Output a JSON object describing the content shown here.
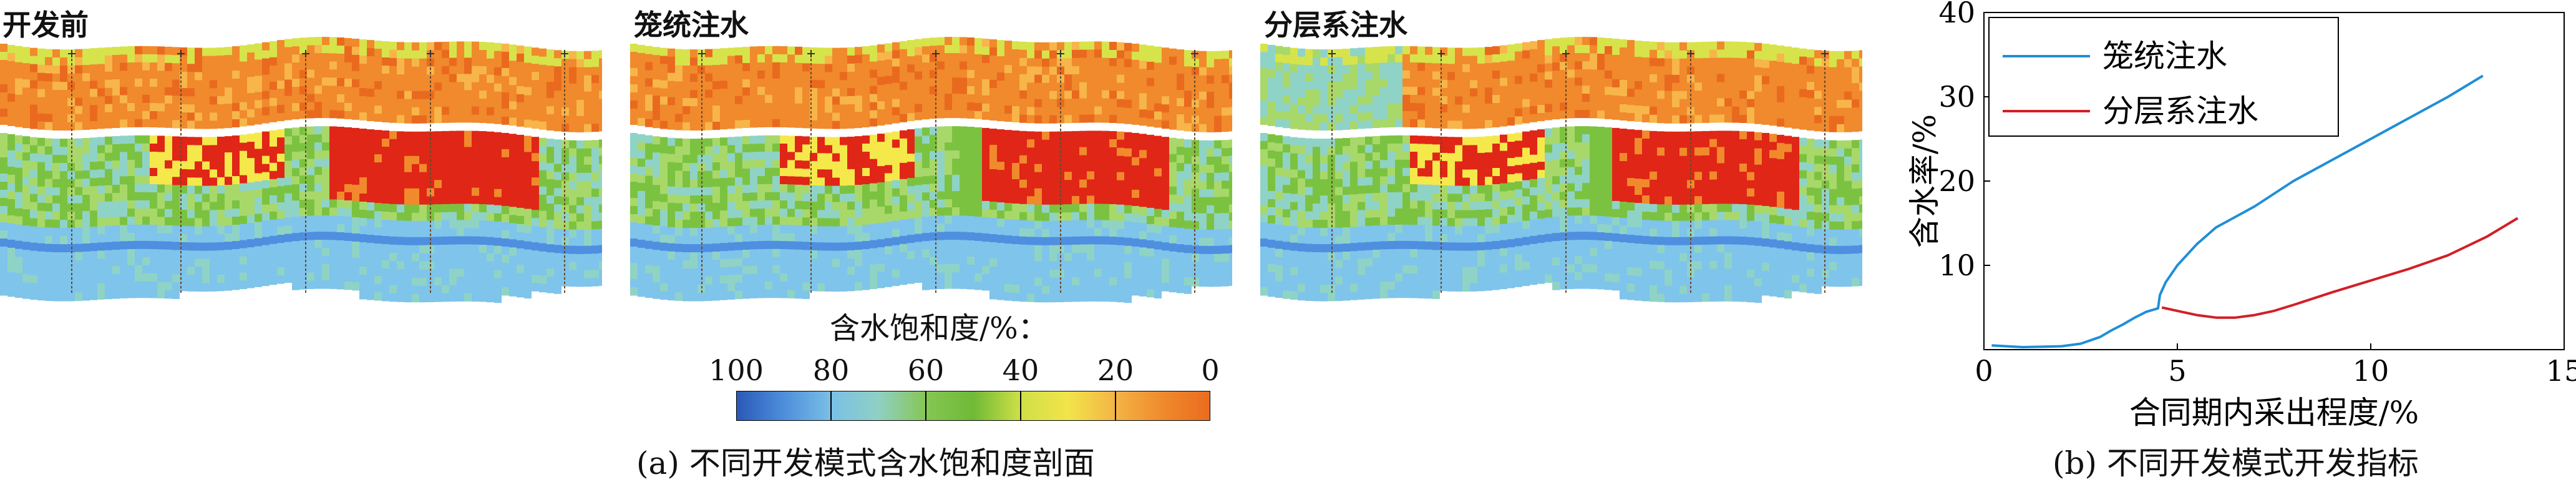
{
  "section_panels": [
    {
      "title": "开发前"
    },
    {
      "title": "笼统注水"
    },
    {
      "title": "分层系注水"
    }
  ],
  "colorbar": {
    "title": "含水饱和度/%：",
    "ticks": [
      "100",
      "80",
      "60",
      "40",
      "20",
      "0"
    ],
    "colors": [
      "#2e5dbd",
      "#4f8fe0",
      "#7fc4ea",
      "#8fd3c6",
      "#a8d86a",
      "#7cc241",
      "#d7e34a",
      "#f5e84b",
      "#f7b54a",
      "#f08a2c",
      "#e96a1e"
    ]
  },
  "captions": {
    "a": "(a) 不同开发模式含水饱和度剖面",
    "b": "(b) 不同开发模式开发指标"
  },
  "chart_data": {
    "type": "line",
    "xlabel": "合同期内采出程度/%",
    "ylabel": "含水率/%",
    "xlim": [
      0,
      15
    ],
    "ylim": [
      0,
      40
    ],
    "xticks": [
      0,
      5,
      10,
      15
    ],
    "yticks": [
      10,
      20,
      30,
      40
    ],
    "legend_position": "top-left",
    "series": [
      {
        "name": "笼统注水",
        "color": "#1f8fd6",
        "x": [
          0.2,
          1.0,
          2.0,
          2.5,
          3.0,
          3.3,
          3.6,
          3.9,
          4.2,
          4.5,
          4.55,
          4.7,
          5.0,
          5.5,
          6.0,
          7.0,
          8.0,
          9.0,
          10.0,
          11.0,
          12.0,
          12.9
        ],
        "y": [
          0.5,
          0.3,
          0.4,
          0.7,
          1.5,
          2.3,
          3.0,
          3.8,
          4.5,
          4.9,
          6.5,
          8.0,
          10.0,
          12.5,
          14.5,
          17.0,
          20.0,
          22.5,
          25.0,
          27.5,
          30.0,
          32.5
        ]
      },
      {
        "name": "分层系注水",
        "color": "#d21f26",
        "x": [
          4.6,
          5.0,
          5.5,
          6.0,
          6.5,
          7.0,
          7.5,
          8.0,
          9.0,
          10.0,
          11.0,
          12.0,
          13.0,
          13.8
        ],
        "y": [
          5.0,
          4.6,
          4.1,
          3.8,
          3.8,
          4.1,
          4.6,
          5.3,
          6.8,
          8.2,
          9.6,
          11.2,
          13.4,
          15.6
        ]
      }
    ]
  }
}
